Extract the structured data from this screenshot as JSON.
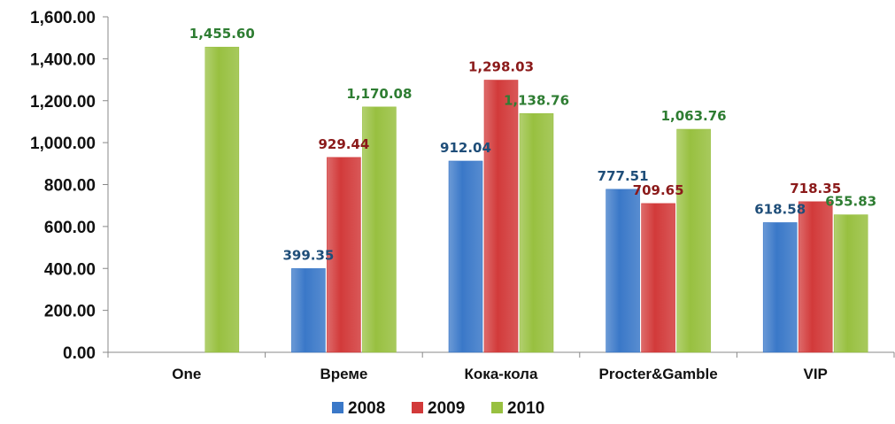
{
  "chart_data": {
    "type": "bar",
    "categories": [
      "One",
      "Време",
      "Кока-кола",
      "Procter&Gamble",
      "VIP"
    ],
    "series": [
      {
        "name": "2008",
        "values": [
          null,
          399.35,
          912.04,
          777.51,
          618.58
        ],
        "labels": [
          "",
          "399.35",
          "912.04",
          "777.51",
          "618.58"
        ]
      },
      {
        "name": "2009",
        "values": [
          null,
          929.44,
          1298.03,
          709.65,
          718.35
        ],
        "labels": [
          "",
          "929.44",
          "1,298.03",
          "709.65",
          "718.35"
        ]
      },
      {
        "name": "2010",
        "values": [
          1455.6,
          1170.08,
          1138.76,
          1063.76,
          655.83
        ],
        "labels": [
          "1,455.60",
          "1,170.08",
          "1,138.76",
          "1,063.76",
          "655.83"
        ]
      }
    ],
    "ylim": [
      0,
      1600
    ],
    "yticks": [
      "0.00",
      "200.00",
      "400.00",
      "600.00",
      "800.00",
      "1,000.00",
      "1,200.00",
      "1,400.00",
      "1,600.00"
    ],
    "title": "",
    "xlabel": "",
    "ylabel": "",
    "grid": false,
    "legend_position": "bottom",
    "colors": {
      "2008": "#3a78c8",
      "2009": "#d23a3a",
      "2010": "#98c040",
      "label_2008": "#1f4e79",
      "label_2009": "#8b1a1a",
      "label_2010": "#2e7d32"
    }
  }
}
